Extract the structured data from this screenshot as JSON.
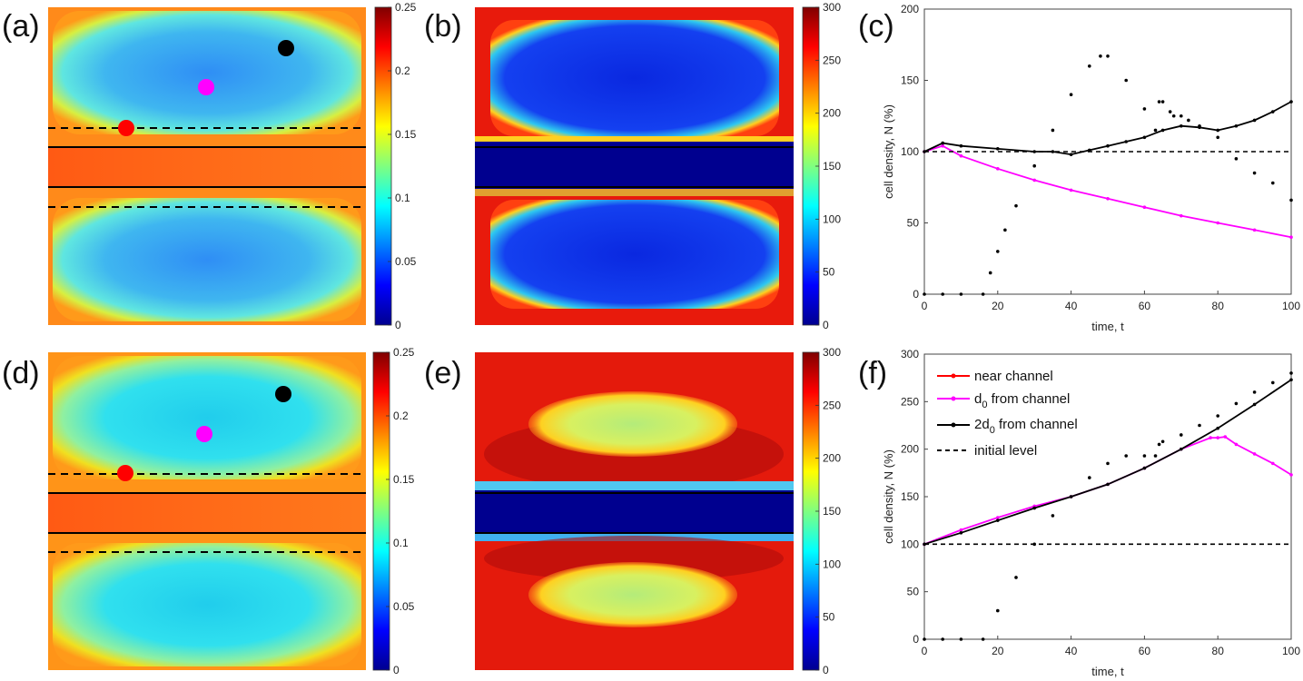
{
  "panel_labels": [
    "(a)",
    "(b)",
    "(c)",
    "(d)",
    "(e)",
    "(f)"
  ],
  "colorbars": {
    "a": {
      "ticks": [
        "0",
        "0.05",
        "0.1",
        "0.15",
        "0.2",
        "0.25"
      ],
      "max": 0.25
    },
    "b": {
      "ticks": [
        "0",
        "50",
        "100",
        "150",
        "200",
        "250",
        "300"
      ],
      "max": 300
    },
    "d": {
      "ticks": [
        "0",
        "0.05",
        "0.1",
        "0.15",
        "0.2",
        "0.25"
      ],
      "max": 0.25
    },
    "e": {
      "ticks": [
        "0",
        "50",
        "100",
        "150",
        "200",
        "250",
        "300"
      ],
      "max": 300
    }
  },
  "colors": {
    "near_channel": "#ff0000",
    "d0": "#ff00ff",
    "two_d0": "#000000",
    "initial": "#000000"
  },
  "legend": {
    "near": "near channel",
    "d0_prefix": "d",
    "d0_sub": "0",
    "d0_suffix": " from channel",
    "two_d0_prefix": "2d",
    "two_d0_sub": "0",
    "two_d0_suffix": " from channel",
    "initial": "initial level"
  },
  "chart_data": [
    {
      "panel": "(c)",
      "type": "line",
      "xlabel": "time, t",
      "ylabel": "cell density, N (%)",
      "xlim": [
        0,
        100
      ],
      "ylim": [
        0,
        200
      ],
      "xticks": [
        "0",
        "20",
        "40",
        "60",
        "80",
        "100"
      ],
      "yticks": [
        "0",
        "50",
        "100",
        "150",
        "200"
      ],
      "series": [
        {
          "key": "near",
          "x": [
            0,
            5,
            10,
            16,
            18,
            20,
            22,
            25,
            30,
            35,
            40,
            45,
            48,
            50,
            55,
            60,
            63,
            64,
            65,
            67,
            68,
            70,
            72,
            75,
            80,
            85,
            90,
            95,
            100
          ],
          "y": [
            0,
            0,
            0,
            0,
            15,
            30,
            45,
            62,
            90,
            115,
            140,
            160,
            167,
            167,
            150,
            130,
            115,
            135,
            135,
            128,
            125,
            125,
            122,
            118,
            110,
            95,
            85,
            78,
            66
          ]
        },
        {
          "key": "d0",
          "x": [
            0,
            5,
            10,
            20,
            30,
            40,
            50,
            60,
            70,
            80,
            90,
            100
          ],
          "y": [
            100,
            104,
            97,
            88,
            80,
            73,
            67,
            61,
            55,
            50,
            45,
            40
          ]
        },
        {
          "key": "two_d0",
          "x": [
            0,
            5,
            10,
            20,
            30,
            35,
            40,
            45,
            50,
            55,
            60,
            65,
            70,
            75,
            80,
            85,
            90,
            95,
            100
          ],
          "y": [
            100,
            106,
            104,
            102,
            100,
            100,
            98,
            101,
            104,
            107,
            110,
            115,
            118,
            117,
            115,
            118,
            122,
            128,
            135
          ]
        },
        {
          "key": "initial",
          "dashed": true,
          "x": [
            0,
            100
          ],
          "y": [
            100,
            100
          ]
        }
      ]
    },
    {
      "panel": "(f)",
      "type": "line",
      "xlabel": "time, t",
      "ylabel": "cell density, N (%)",
      "xlim": [
        0,
        100
      ],
      "ylim": [
        0,
        300
      ],
      "xticks": [
        "0",
        "20",
        "40",
        "60",
        "80",
        "100"
      ],
      "yticks": [
        "0",
        "50",
        "100",
        "150",
        "200",
        "250",
        "300"
      ],
      "series": [
        {
          "key": "near",
          "x": [
            0,
            5,
            10,
            16,
            20,
            25,
            30,
            35,
            40,
            45,
            50,
            55,
            60,
            63,
            64,
            65,
            70,
            75,
            80,
            85,
            90,
            95,
            100
          ],
          "y": [
            0,
            0,
            0,
            0,
            30,
            65,
            100,
            130,
            150,
            170,
            185,
            193,
            193,
            193,
            205,
            208,
            215,
            225,
            235,
            248,
            260,
            270,
            280
          ]
        },
        {
          "key": "d0",
          "x": [
            0,
            10,
            20,
            30,
            40,
            50,
            60,
            70,
            78,
            80,
            82,
            85,
            90,
            95,
            100
          ],
          "y": [
            100,
            115,
            128,
            140,
            150,
            163,
            180,
            200,
            212,
            212,
            213,
            205,
            195,
            185,
            173
          ]
        },
        {
          "key": "two_d0",
          "x": [
            0,
            10,
            20,
            30,
            40,
            50,
            60,
            70,
            80,
            90,
            100
          ],
          "y": [
            100,
            112,
            125,
            138,
            150,
            163,
            180,
            200,
            222,
            247,
            273
          ]
        },
        {
          "key": "initial",
          "dashed": true,
          "x": [
            0,
            100
          ],
          "y": [
            100,
            100
          ]
        }
      ]
    }
  ]
}
